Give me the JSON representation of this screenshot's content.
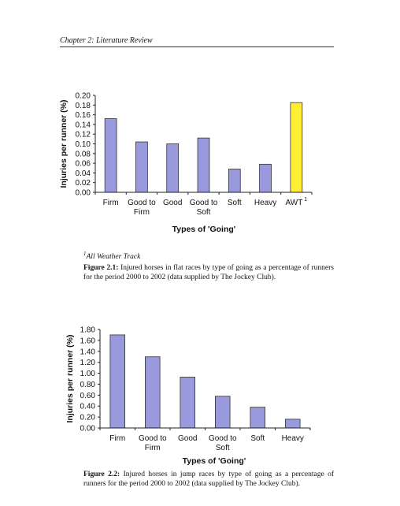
{
  "page": {
    "header": "Chapter 2: Literature Review",
    "footnote_mark": "1",
    "footnote_text": "All Weather Track",
    "figures": [
      {
        "label": "Figure 2.1:",
        "caption": " Injured horses in flat races by type of going as a percentage of runners for the period 2000 to 2002 (data supplied by The Jockey Club)."
      },
      {
        "label": "Figure 2.2:",
        "caption": " Injured horses in jump races by type of going as a percentage of runners for the period 2000 to 2002 (data supplied by The Jockey Club)."
      }
    ]
  },
  "chart_data": [
    {
      "type": "bar",
      "categories": [
        "Firm",
        "Good to Firm",
        "Good",
        "Good to Soft",
        "Soft",
        "Heavy",
        "AWT"
      ],
      "category_lines": [
        [
          "Firm"
        ],
        [
          "Good to",
          "Firm"
        ],
        [
          "Good"
        ],
        [
          "Good to",
          "Soft"
        ],
        [
          "Soft"
        ],
        [
          "Heavy"
        ],
        [
          "AWT"
        ]
      ],
      "superscript_on_last": "1",
      "values": [
        0.152,
        0.104,
        0.1,
        0.112,
        0.048,
        0.058,
        0.185
      ],
      "colors": [
        "#9999dd",
        "#9999dd",
        "#9999dd",
        "#9999dd",
        "#9999dd",
        "#9999dd",
        "#ffee33"
      ],
      "ylabel": "Injuries per runner (%)",
      "xlabel": "Types of 'Going'",
      "ylim": [
        0,
        0.2
      ],
      "yticks": [
        "0.00",
        "0.02",
        "0.04",
        "0.06",
        "0.08",
        "0.10",
        "0.12",
        "0.14",
        "0.16",
        "0.18",
        "0.20"
      ],
      "grid": false
    },
    {
      "type": "bar",
      "categories": [
        "Firm",
        "Good to Firm",
        "Good",
        "Good to Soft",
        "Soft",
        "Heavy"
      ],
      "category_lines": [
        [
          "Firm"
        ],
        [
          "Good to",
          "Firm"
        ],
        [
          "Good"
        ],
        [
          "Good to",
          "Soft"
        ],
        [
          "Soft"
        ],
        [
          "Heavy"
        ]
      ],
      "values": [
        1.7,
        1.3,
        0.93,
        0.58,
        0.38,
        0.16
      ],
      "colors": [
        "#9999dd",
        "#9999dd",
        "#9999dd",
        "#9999dd",
        "#9999dd",
        "#9999dd"
      ],
      "ylabel": "Injuries per runner (%)",
      "xlabel": "Types of 'Going'",
      "ylim": [
        0,
        1.8
      ],
      "yticks": [
        "0.00",
        "0.20",
        "0.40",
        "0.60",
        "0.80",
        "1.00",
        "1.20",
        "1.40",
        "1.60",
        "1.80"
      ],
      "grid": false
    }
  ]
}
